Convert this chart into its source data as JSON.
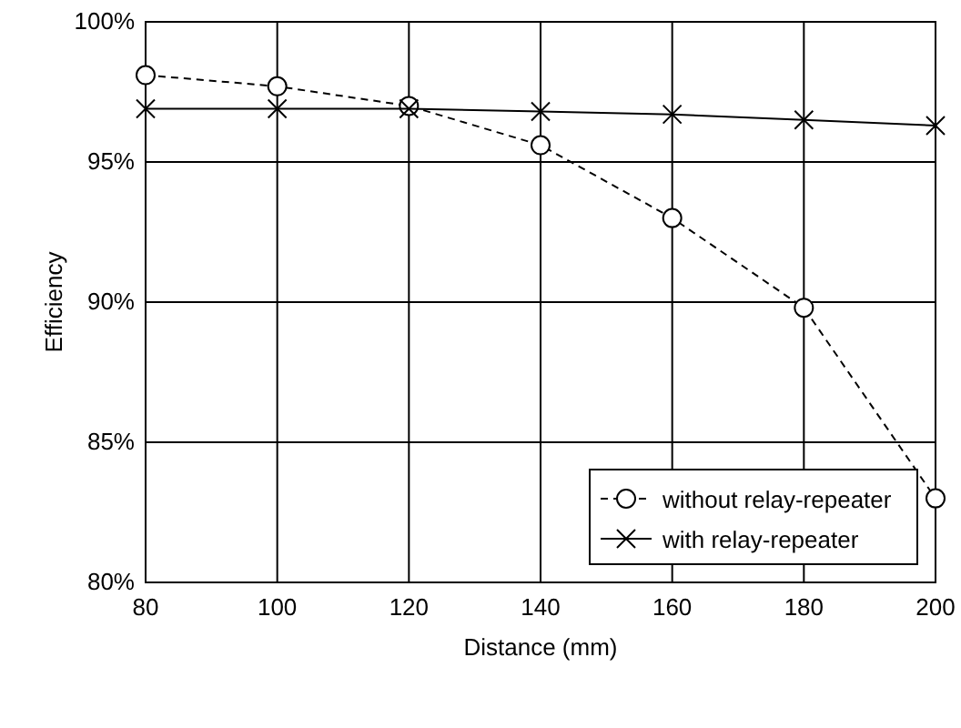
{
  "chart_data": {
    "type": "line",
    "xlabel": "Distance (mm)",
    "ylabel": "Efficiency",
    "x": [
      80,
      100,
      120,
      140,
      160,
      180,
      200
    ],
    "series": [
      {
        "name": "without relay-repeater",
        "color": "#000000",
        "marker": "circle",
        "line_style": "dashed",
        "values": [
          98.1,
          97.7,
          97.0,
          95.6,
          93.0,
          89.8,
          83.0
        ]
      },
      {
        "name": "with relay-repeater",
        "color": "#000000",
        "marker": "cross",
        "line_style": "solid",
        "values": [
          96.9,
          96.9,
          96.9,
          96.8,
          96.7,
          96.5,
          96.3
        ]
      }
    ],
    "xlim": [
      80,
      200
    ],
    "xticks": [
      80,
      100,
      120,
      140,
      160,
      180,
      200
    ],
    "ylim": [
      80,
      100
    ],
    "yticks": [
      {
        "value": 80,
        "label": "80%"
      },
      {
        "value": 85,
        "label": "85%"
      },
      {
        "value": 90,
        "label": "90%"
      },
      {
        "value": 95,
        "label": "95%"
      },
      {
        "value": 100,
        "label": "100%"
      }
    ],
    "grid": true,
    "legend": "bottom right"
  }
}
